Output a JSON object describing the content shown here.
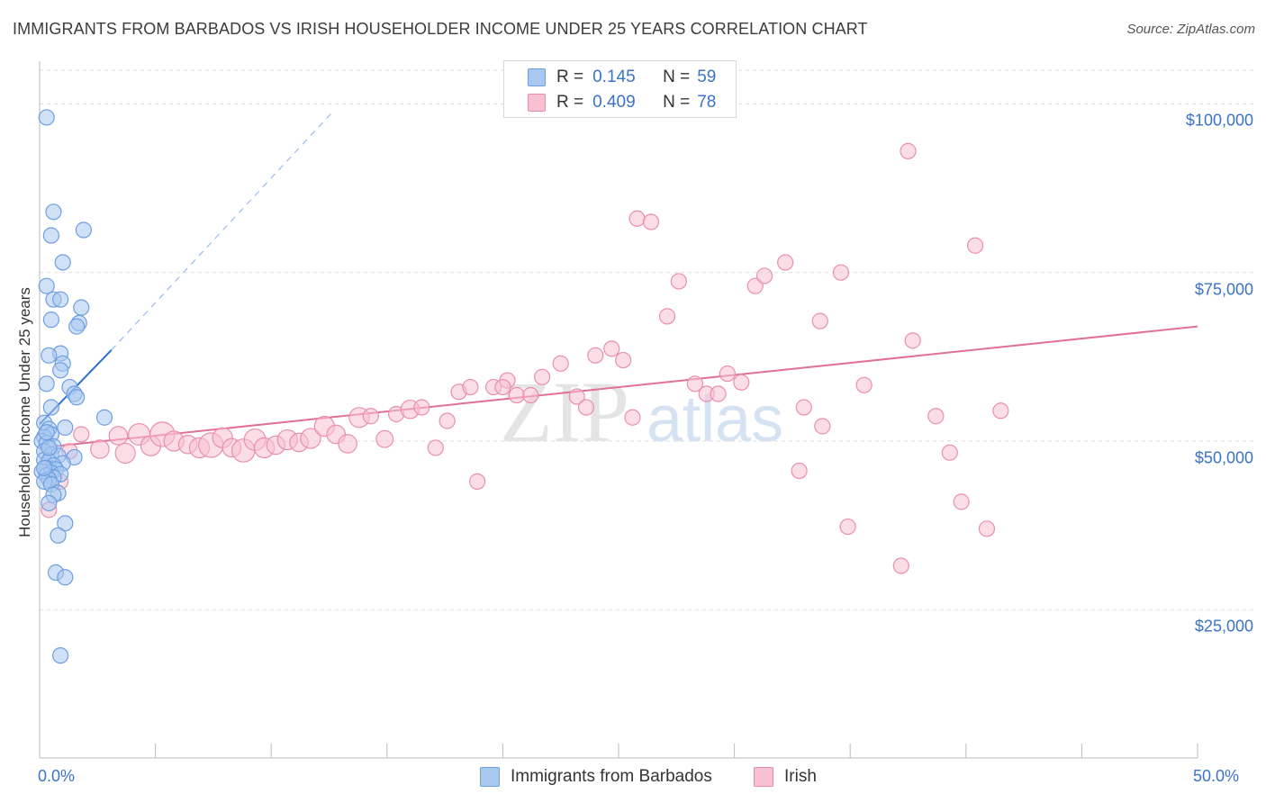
{
  "header": {
    "title": "IMMIGRANTS FROM BARBADOS VS IRISH HOUSEHOLDER INCOME UNDER 25 YEARS CORRELATION CHART",
    "source": "Source: ZipAtlas.com"
  },
  "watermark": {
    "zip": "ZIP",
    "atlas": "atlas"
  },
  "legend": {
    "series1": {
      "r_label": "R =",
      "r_value": "0.145",
      "n_label": "N =",
      "n_value": "59"
    },
    "series2": {
      "r_label": "R =",
      "r_value": "0.409",
      "n_label": "N =",
      "n_value": "78"
    }
  },
  "colors": {
    "blue_fill": "#a9c8f0",
    "blue_stroke": "#6e9fe0",
    "blue_line": "#2b6fd6",
    "pink_fill": "#f7c1d2",
    "pink_stroke": "#e98fae",
    "pink_line": "#e0709a",
    "tick_text": "#3b73c8",
    "grid": "#dddddd"
  },
  "chart_data": {
    "type": "scatter",
    "title": "IMMIGRANTS FROM BARBADOS VS IRISH HOUSEHOLDER INCOME UNDER 25 YEARS CORRELATION CHART",
    "xlabel": "",
    "ylabel": "Householder Income Under 25 years",
    "xlim": [
      0,
      50
    ],
    "ylim": [
      3000,
      105000
    ],
    "x_tick_labels": [
      "0.0%",
      "50.0%"
    ],
    "y_ticks": [
      {
        "value": 25000,
        "label": "$25,000"
      },
      {
        "value": 50000,
        "label": "$50,000"
      },
      {
        "value": 75000,
        "label": "$75,000"
      },
      {
        "value": 100000,
        "label": "$100,000"
      }
    ],
    "grid": true,
    "series": [
      {
        "name": "Immigrants from Barbados",
        "color": "#a9c8f0",
        "trend": {
          "x0": 0,
          "y0": 52500,
          "x1": 3.1,
          "y1": 63500,
          "dash_to_x": 12.7,
          "dash_to_y": 99000
        },
        "points": [
          [
            0.3,
            98000,
            1
          ],
          [
            0.6,
            84000,
            1
          ],
          [
            1.9,
            81300,
            1
          ],
          [
            0.5,
            80500,
            1
          ],
          [
            1.0,
            76500,
            1
          ],
          [
            0.3,
            73000,
            1
          ],
          [
            0.6,
            71000,
            1
          ],
          [
            0.9,
            71000,
            1
          ],
          [
            1.8,
            69800,
            1
          ],
          [
            0.5,
            68000,
            1
          ],
          [
            1.7,
            67500,
            1
          ],
          [
            1.6,
            67000,
            1
          ],
          [
            0.9,
            63000,
            1
          ],
          [
            0.4,
            62700,
            1
          ],
          [
            1.0,
            61500,
            1
          ],
          [
            0.9,
            60500,
            1
          ],
          [
            0.3,
            58500,
            1
          ],
          [
            1.3,
            58000,
            1
          ],
          [
            1.5,
            57000,
            1
          ],
          [
            1.6,
            56500,
            1
          ],
          [
            0.5,
            55000,
            1
          ],
          [
            2.8,
            53500,
            1
          ],
          [
            0.2,
            52700,
            1
          ],
          [
            1.1,
            52000,
            1
          ],
          [
            0.4,
            51800,
            1
          ],
          [
            0.5,
            51000,
            1
          ],
          [
            0.2,
            50600,
            1
          ],
          [
            0.1,
            50000,
            1
          ],
          [
            0.3,
            49700,
            1
          ],
          [
            0.6,
            49200,
            1
          ],
          [
            0.2,
            48500,
            1
          ],
          [
            0.5,
            48000,
            1
          ],
          [
            0.8,
            47800,
            1
          ],
          [
            1.5,
            47600,
            1
          ],
          [
            0.2,
            47200,
            1
          ],
          [
            0.4,
            47000,
            1
          ],
          [
            1.0,
            46700,
            1
          ],
          [
            0.6,
            46400,
            1
          ],
          [
            0.3,
            46000,
            1
          ],
          [
            0.7,
            45800,
            1
          ],
          [
            0.1,
            45500,
            1
          ],
          [
            0.5,
            45300,
            1
          ],
          [
            0.9,
            45100,
            1
          ],
          [
            0.3,
            44900,
            1
          ],
          [
            0.6,
            44600,
            1
          ],
          [
            0.4,
            44300,
            1
          ],
          [
            0.2,
            44000,
            1
          ],
          [
            0.5,
            43600,
            1
          ],
          [
            0.8,
            42300,
            1
          ],
          [
            0.6,
            42000,
            1
          ],
          [
            0.4,
            40800,
            1
          ],
          [
            1.1,
            37800,
            1
          ],
          [
            0.8,
            36000,
            1
          ],
          [
            0.7,
            30500,
            1
          ],
          [
            1.1,
            29800,
            1
          ],
          [
            0.9,
            18200,
            1
          ],
          [
            0.2,
            46000,
            1
          ],
          [
            0.4,
            49000,
            1
          ],
          [
            0.3,
            51300,
            1
          ]
        ]
      },
      {
        "name": "Irish",
        "color": "#f7c1d2",
        "trend": {
          "x0": 0,
          "y0": 49000,
          "x1": 50,
          "y1": 67000
        },
        "points": [
          [
            0.4,
            39800,
            1
          ],
          [
            0.9,
            44000,
            1
          ],
          [
            1.3,
            48500,
            1
          ],
          [
            1.8,
            51000,
            1
          ],
          [
            2.6,
            48800,
            1.2
          ],
          [
            3.4,
            50800,
            1.2
          ],
          [
            3.7,
            48200,
            1.3
          ],
          [
            4.3,
            51000,
            1.4
          ],
          [
            4.8,
            49300,
            1.3
          ],
          [
            5.3,
            51000,
            1.6
          ],
          [
            5.8,
            50000,
            1.3
          ],
          [
            6.4,
            49500,
            1.2
          ],
          [
            6.9,
            49000,
            1.3
          ],
          [
            7.4,
            49400,
            1.6
          ],
          [
            7.9,
            50500,
            1.3
          ],
          [
            8.3,
            49000,
            1.2
          ],
          [
            8.8,
            48600,
            1.5
          ],
          [
            9.3,
            50200,
            1.4
          ],
          [
            9.7,
            49000,
            1.3
          ],
          [
            10.2,
            49400,
            1.2
          ],
          [
            10.7,
            50200,
            1.3
          ],
          [
            11.2,
            49800,
            1.2
          ],
          [
            11.7,
            50400,
            1.3
          ],
          [
            12.3,
            52200,
            1.3
          ],
          [
            12.8,
            51000,
            1.2
          ],
          [
            13.3,
            49600,
            1.2
          ],
          [
            13.8,
            53500,
            1.3
          ],
          [
            14.3,
            53700,
            1
          ],
          [
            14.9,
            50300,
            1.1
          ],
          [
            15.4,
            54000,
            1
          ],
          [
            16.0,
            54700,
            1.2
          ],
          [
            16.5,
            55000,
            1
          ],
          [
            17.1,
            49000,
            1
          ],
          [
            17.6,
            53000,
            1
          ],
          [
            18.1,
            57300,
            1
          ],
          [
            18.6,
            58000,
            1
          ],
          [
            18.9,
            44000,
            1
          ],
          [
            19.6,
            58000,
            1
          ],
          [
            20.2,
            59000,
            1
          ],
          [
            20.6,
            56800,
            1
          ],
          [
            21.2,
            56800,
            1
          ],
          [
            21.7,
            59500,
            1
          ],
          [
            22.5,
            61500,
            1
          ],
          [
            23.2,
            56600,
            1
          ],
          [
            23.6,
            55000,
            1
          ],
          [
            24.0,
            62700,
            1
          ],
          [
            24.7,
            63700,
            1
          ],
          [
            25.2,
            62000,
            1
          ],
          [
            25.6,
            53500,
            1
          ],
          [
            25.8,
            83000,
            1
          ],
          [
            26.4,
            82500,
            1
          ],
          [
            27.1,
            68500,
            1
          ],
          [
            27.6,
            73700,
            1
          ],
          [
            28.3,
            58500,
            1
          ],
          [
            28.8,
            57000,
            1
          ],
          [
            29.3,
            57000,
            1
          ],
          [
            29.7,
            60000,
            1
          ],
          [
            30.3,
            58700,
            1
          ],
          [
            30.9,
            73000,
            1
          ],
          [
            31.3,
            74500,
            1
          ],
          [
            32.2,
            76500,
            1
          ],
          [
            32.8,
            45600,
            1
          ],
          [
            33.8,
            52200,
            1
          ],
          [
            33.7,
            67800,
            1
          ],
          [
            34.6,
            75000,
            1
          ],
          [
            34.9,
            37300,
            1
          ],
          [
            35.6,
            58300,
            1
          ],
          [
            37.2,
            31500,
            1
          ],
          [
            37.7,
            64900,
            1
          ],
          [
            37.5,
            93000,
            1
          ],
          [
            38.7,
            53700,
            1
          ],
          [
            39.3,
            48300,
            1
          ],
          [
            39.8,
            41000,
            1
          ],
          [
            40.4,
            79000,
            1
          ],
          [
            40.9,
            37000,
            1
          ],
          [
            41.5,
            54500,
            1
          ],
          [
            20.0,
            58000,
            1
          ],
          [
            33.0,
            55000,
            1
          ]
        ]
      }
    ],
    "x_axis_label_left": "0.0%",
    "x_axis_label_right": "50.0%"
  },
  "bottom_legend": {
    "series1": "Immigrants from Barbados",
    "series2": "Irish"
  }
}
